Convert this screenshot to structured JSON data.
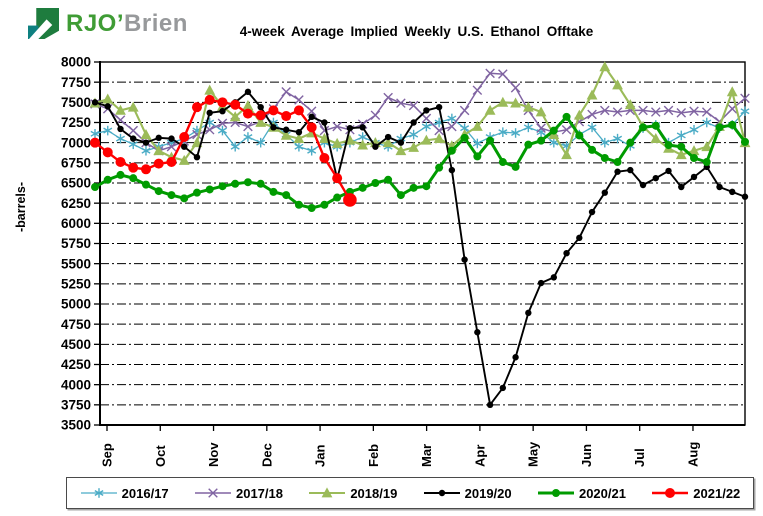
{
  "logo": {
    "brand_green": "RJO’",
    "brand_gray": "Brien"
  },
  "title": "4-week Average Implied Weekly U.S. Ethanol Offtake",
  "y_axis": {
    "label": "-barrels-",
    "min": 3500,
    "max": 8000,
    "step": 250,
    "tick_labels": [
      8000,
      7750,
      7500,
      7250,
      7000,
      6750,
      6500,
      6250,
      6000,
      5750,
      5500,
      5250,
      5000,
      4750,
      4500,
      4250,
      4000,
      3750,
      3500
    ]
  },
  "x_axis": {
    "months": [
      "Sep",
      "Oct",
      "Nov",
      "Dec",
      "Jan",
      "Feb",
      "Mar",
      "Apr",
      "May",
      "Jun",
      "Jul",
      "Aug"
    ]
  },
  "chart_data": {
    "type": "line",
    "x_unit": "week",
    "ylim": [
      3500,
      8000
    ],
    "grid": "dashed-horizontal",
    "legend_position": "bottom",
    "categories_months": [
      "Sep",
      "Oct",
      "Nov",
      "Dec",
      "Jan",
      "Feb",
      "Mar",
      "Apr",
      "May",
      "Jun",
      "Jul",
      "Aug"
    ],
    "series": [
      {
        "name": "2016/17",
        "color": "#4BACC6",
        "marker": "asterisk",
        "values": [
          7110,
          7150,
          7050,
          6980,
          6900,
          6950,
          7000,
          7050,
          7150,
          7250,
          7150,
          6950,
          7070,
          7000,
          7250,
          7100,
          6950,
          6900,
          7000,
          6950,
          7000,
          7070,
          7000,
          6950,
          7050,
          7100,
          7200,
          7250,
          7300,
          7180,
          6990,
          7070,
          7130,
          7120,
          7190,
          7130,
          7000,
          6960,
          7100,
          7190,
          7000,
          7050,
          6960,
          7180,
          7220,
          7000,
          7090,
          7160,
          7250,
          7180,
          7220,
          7390
        ]
      },
      {
        "name": "2017/18",
        "color": "#8064A2",
        "marker": "x",
        "values": [
          7480,
          7420,
          7280,
          7150,
          7000,
          6900,
          6950,
          7020,
          7100,
          7160,
          7240,
          7250,
          7200,
          7260,
          7420,
          7630,
          7530,
          7390,
          7150,
          7200,
          7160,
          7230,
          7340,
          7560,
          7490,
          7460,
          7300,
          7150,
          7200,
          7400,
          7650,
          7860,
          7850,
          7680,
          7400,
          7180,
          7130,
          7160,
          7260,
          7350,
          7400,
          7380,
          7400,
          7400,
          7380,
          7400,
          7370,
          7390,
          7380,
          7260,
          7420,
          7550
        ]
      },
      {
        "name": "2018/19",
        "color": "#9BBB59",
        "marker": "triangle",
        "values": [
          7490,
          7540,
          7400,
          7440,
          7100,
          6900,
          6820,
          6780,
          7000,
          7650,
          7450,
          7320,
          7460,
          7250,
          7190,
          7090,
          7050,
          7120,
          7050,
          6990,
          7030,
          6970,
          7000,
          7000,
          6900,
          6940,
          7030,
          7050,
          6960,
          7100,
          7200,
          7400,
          7500,
          7490,
          7440,
          7380,
          7100,
          6850,
          7340,
          7590,
          7940,
          7715,
          7470,
          7200,
          7050,
          6930,
          6850,
          6900,
          6950,
          7200,
          7630,
          7000
        ]
      },
      {
        "name": "2019/20",
        "color": "#000000",
        "marker": "dot-small",
        "values": [
          7500,
          7450,
          7170,
          7050,
          7000,
          7060,
          7050,
          6950,
          6820,
          7370,
          7390,
          7500,
          7630,
          7440,
          7190,
          7160,
          7130,
          7320,
          7250,
          6550,
          7180,
          7190,
          6950,
          7070,
          7000,
          7250,
          7400,
          7440,
          6660,
          5550,
          4650,
          3750,
          3960,
          4340,
          4890,
          5260,
          5330,
          5630,
          5820,
          6140,
          6380,
          6640,
          6660,
          6475,
          6560,
          6650,
          6450,
          6575,
          6700,
          6450,
          6390,
          6330
        ]
      },
      {
        "name": "2020/21",
        "color": "#009B00",
        "marker": "dot",
        "values": [
          6450,
          6540,
          6600,
          6560,
          6480,
          6400,
          6350,
          6310,
          6380,
          6420,
          6460,
          6490,
          6510,
          6490,
          6390,
          6350,
          6230,
          6190,
          6230,
          6320,
          6390,
          6440,
          6500,
          6540,
          6350,
          6440,
          6460,
          6690,
          6900,
          7060,
          6830,
          7025,
          6760,
          6700,
          6975,
          7025,
          7150,
          7320,
          7090,
          6910,
          6810,
          6760,
          7000,
          7190,
          7210,
          6970,
          6950,
          6810,
          6760,
          7190,
          7220,
          7010
        ]
      },
      {
        "name": "2021/22",
        "color": "#FF0000",
        "marker": "dot-large",
        "last_point_emphasis": true,
        "values": [
          7000,
          6880,
          6760,
          6690,
          6670,
          6740,
          6760,
          7070,
          7440,
          7530,
          7500,
          7470,
          7360,
          7340,
          7400,
          7330,
          7400,
          7190,
          6810,
          6560,
          6290
        ]
      }
    ]
  }
}
